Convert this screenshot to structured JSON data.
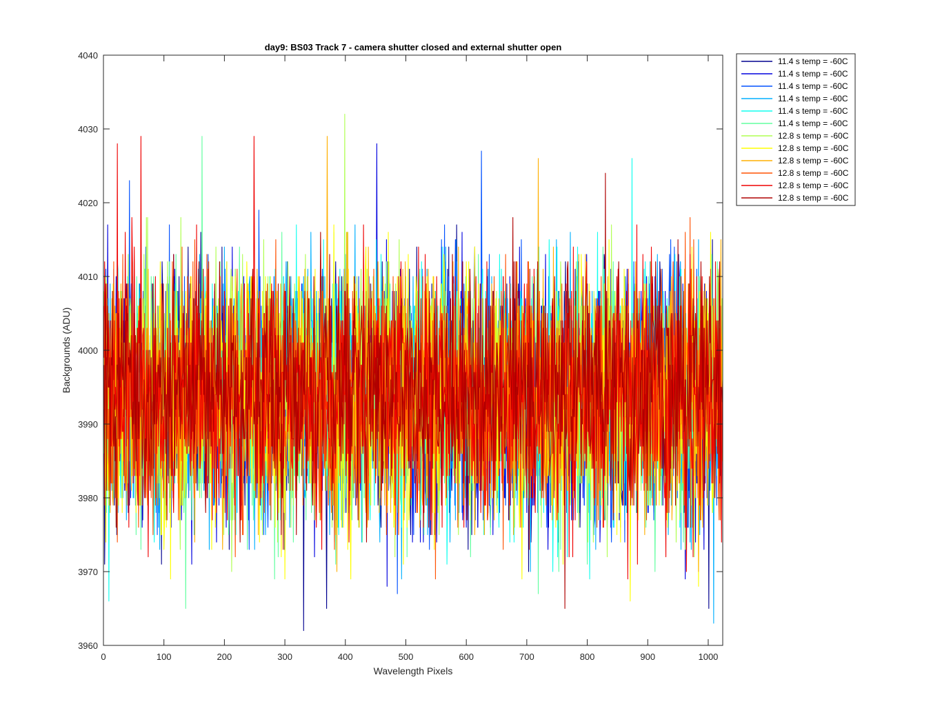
{
  "chart_data": {
    "type": "line",
    "title": "day9: BS03  Track 7 - camera shutter closed and external shutter open",
    "xlabel": "Wavelength Pixels",
    "ylabel": "Backgrounds (ADU)",
    "xlim": [
      0,
      1024
    ],
    "ylim": [
      3960,
      4040
    ],
    "xticks": [
      0,
      100,
      200,
      300,
      400,
      500,
      600,
      700,
      800,
      900,
      1000
    ],
    "yticks": [
      3960,
      3970,
      3980,
      3990,
      4000,
      4010,
      4020,
      4030,
      4040
    ],
    "xtick_labels": [
      "0",
      "100",
      "200",
      "300",
      "400",
      "500",
      "600",
      "700",
      "800",
      "900",
      "1000"
    ],
    "ytick_labels": [
      "3960",
      "3970",
      "3980",
      "3990",
      "4000",
      "4010",
      "4020",
      "4030",
      "4040"
    ],
    "grid": false,
    "legend_position": "outside top-right",
    "n_points_per_series": 1024,
    "series": [
      {
        "name": "11.4 s temp = -60C",
        "color": "#00008F",
        "mean": 3994,
        "sd": 8.5,
        "spikes": [
          [
            330,
            3962
          ],
          [
            368,
            3965
          ],
          [
            1000,
            3965
          ]
        ]
      },
      {
        "name": "11.4 s temp = -60C",
        "color": "#0000DF",
        "mean": 3994,
        "sd": 8.5,
        "spikes": [
          [
            451,
            4028
          ],
          [
            6,
            4017
          ]
        ]
      },
      {
        "name": "11.4 s temp = -60C",
        "color": "#0050FF",
        "mean": 3994,
        "sd": 8.5,
        "spikes": [
          [
            624,
            4027
          ],
          [
            42,
            4023
          ]
        ]
      },
      {
        "name": "11.4 s temp = -60C",
        "color": "#00AFFF",
        "mean": 3994,
        "sd": 8.5,
        "spikes": [
          [
            1008,
            3963
          ]
        ]
      },
      {
        "name": "11.4 s temp = -60C",
        "color": "#0FFFEF",
        "mean": 3994,
        "sd": 8.5,
        "spikes": [
          [
            873,
            4026
          ],
          [
            8,
            3966
          ]
        ]
      },
      {
        "name": "11.4 s temp = -60C",
        "color": "#60FF9F",
        "mean": 3994,
        "sd": 8.5,
        "spikes": [
          [
            162,
            4029
          ],
          [
            135,
            3965
          ]
        ]
      },
      {
        "name": "12.8 s temp = -60C",
        "color": "#AFFF50",
        "mean": 3994,
        "sd": 8.5,
        "spikes": [
          [
            398,
            4032
          ]
        ]
      },
      {
        "name": "12.8 s temp = -60C",
        "color": "#FFFF00",
        "mean": 3994,
        "sd": 8.5,
        "spikes": [
          [
            870,
            3966
          ]
        ]
      },
      {
        "name": "12.8 s temp = -60C",
        "color": "#FFAF00",
        "mean": 3994,
        "sd": 8.5,
        "spikes": [
          [
            369,
            4029
          ],
          [
            718,
            4026
          ]
        ]
      },
      {
        "name": "12.8 s temp = -60C",
        "color": "#FF5000",
        "mean": 3994,
        "sd": 8.5,
        "spikes": [
          [
            548,
            3969
          ]
        ]
      },
      {
        "name": "12.8 s temp = -60C",
        "color": "#EF0000",
        "mean": 3994,
        "sd": 8.5,
        "spikes": [
          [
            22,
            4028
          ],
          [
            61,
            4029
          ],
          [
            248,
            4029
          ]
        ]
      },
      {
        "name": "12.8 s temp = -60C",
        "color": "#AF0000",
        "mean": 3995,
        "sd": 7.5,
        "spikes": [
          [
            829,
            4024
          ],
          [
            762,
            3965
          ]
        ]
      }
    ]
  }
}
